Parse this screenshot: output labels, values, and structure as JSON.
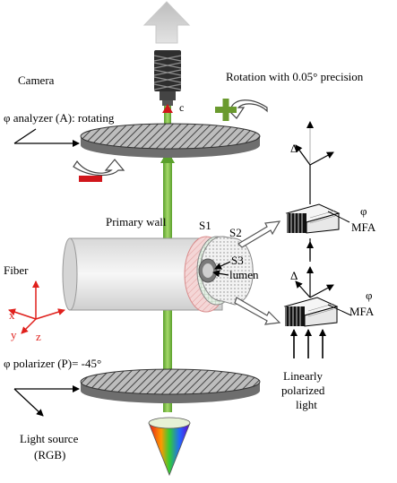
{
  "labels": {
    "camera": "Camera",
    "rotation": "Rotation with 0.05° precision",
    "analyzer": "φ analyzer (A): rotating",
    "primary_wall": "Primary wall",
    "s1": "S1",
    "s2": "S2",
    "s3": "S3",
    "lumen": "lumen",
    "fiber": "Fiber",
    "axis_x": "x",
    "axis_y": "y",
    "axis_z": "z",
    "polarizer": "φ polarizer (P)= -45°",
    "light_source_1": "Light source",
    "light_source_2": "(RGB)",
    "camera_c": "c",
    "delta_top": "Δ",
    "phi_top": "φ",
    "mfa_top": "MFA",
    "delta_bottom": "Δ",
    "phi_bottom": "φ",
    "mfa_bottom": "MFA",
    "linearly_1": "Linearly",
    "linearly_2": "polarized",
    "linearly_3": "light",
    "plus_sign": "+",
    "minus_sign": "−"
  },
  "colors": {
    "beam": "#7ac143",
    "plus": "#6a9a2e",
    "minus": "#d0161b",
    "axes": "#e0201c",
    "disc": "#8a8a8a"
  }
}
